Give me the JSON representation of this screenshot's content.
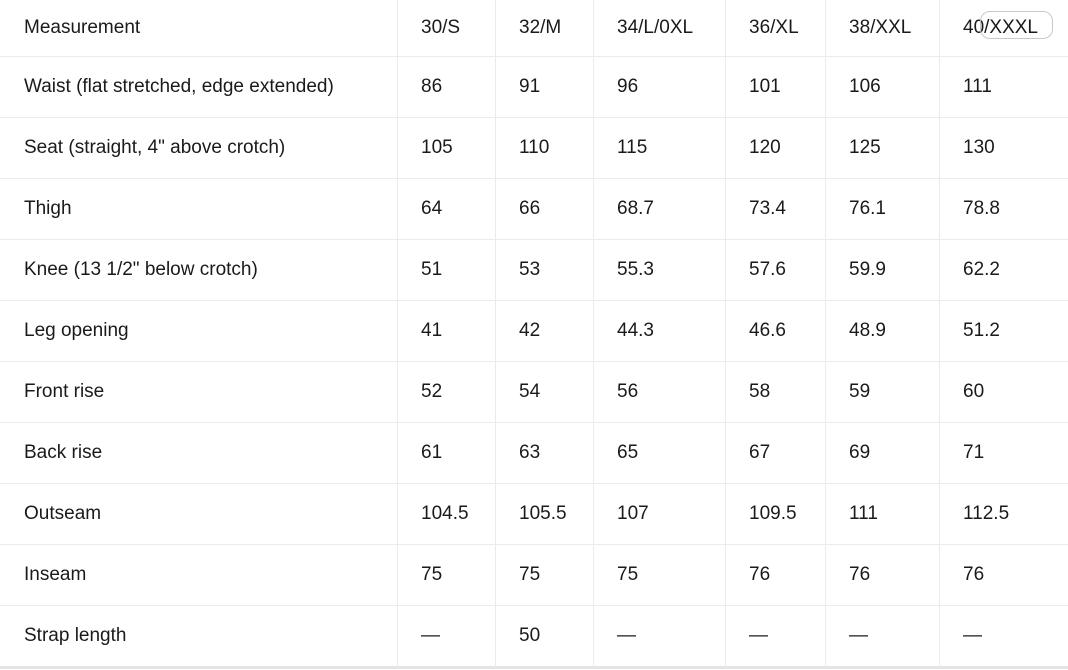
{
  "table": {
    "header": [
      "Measurement",
      "30/S",
      "32/M",
      "34/L/0XL",
      "36/XL",
      "38/XXL",
      "40/XXXL"
    ],
    "rows": [
      [
        "Waist (flat stretched, edge extended)",
        "86",
        "91",
        "96",
        "101",
        "106",
        "111"
      ],
      [
        "Seat (straight, 4\" above crotch)",
        "105",
        "110",
        "115",
        "120",
        "125",
        "130"
      ],
      [
        "Thigh",
        "64",
        "66",
        "68.7",
        "73.4",
        "76.1",
        "78.8"
      ],
      [
        "Knee (13 1/2\" below crotch)",
        "51",
        "53",
        "55.3",
        "57.6",
        "59.9",
        "62.2"
      ],
      [
        "Leg opening",
        "41",
        "42",
        "44.3",
        "46.6",
        "48.9",
        "51.2"
      ],
      [
        "Front rise",
        "52",
        "54",
        "56",
        "58",
        "59",
        "60"
      ],
      [
        "Back rise",
        "61",
        "63",
        "65",
        "67",
        "69",
        "71"
      ],
      [
        "Outseam",
        "104.5",
        "105.5",
        "107",
        "109.5",
        "111",
        "112.5"
      ],
      [
        "Inseam",
        "75",
        "75",
        "75",
        "76",
        "76",
        "76"
      ],
      [
        "Strap length",
        "—",
        "50",
        "—",
        "—",
        "—",
        "—"
      ]
    ]
  }
}
